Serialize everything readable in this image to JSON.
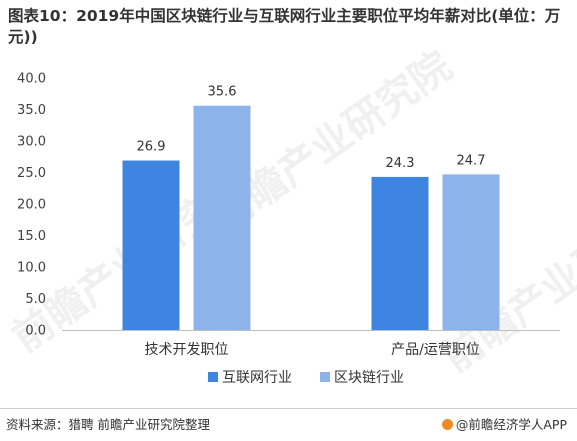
{
  "title": "图表10：2019年中国区块链行业与互联网行业主要职位平均年薪对比(单位：万元))",
  "footer": {
    "source": "资料来源：猎聘 前瞻产业研究院整理",
    "brand": "@前瞻经济学人APP"
  },
  "colors": {
    "series_1": "#3d85e0",
    "series_2": "#8db4ea"
  },
  "chart_data": {
    "type": "bar",
    "categories": [
      "技术开发职位",
      "产品/运营职位"
    ],
    "series": [
      {
        "name": "互联网行业",
        "values": [
          26.9,
          24.3
        ]
      },
      {
        "name": "区块链行业",
        "values": [
          35.6,
          24.7
        ]
      }
    ],
    "ylim": [
      0,
      40
    ],
    "y_ticks": [
      "0.0",
      "5.0",
      "10.0",
      "15.0",
      "20.0",
      "25.0",
      "30.0",
      "35.0",
      "40.0"
    ],
    "data_labels": [
      [
        "26.9",
        "24.3"
      ],
      [
        "35.6",
        "24.7"
      ]
    ],
    "grid": false,
    "legend_position": "bottom"
  }
}
